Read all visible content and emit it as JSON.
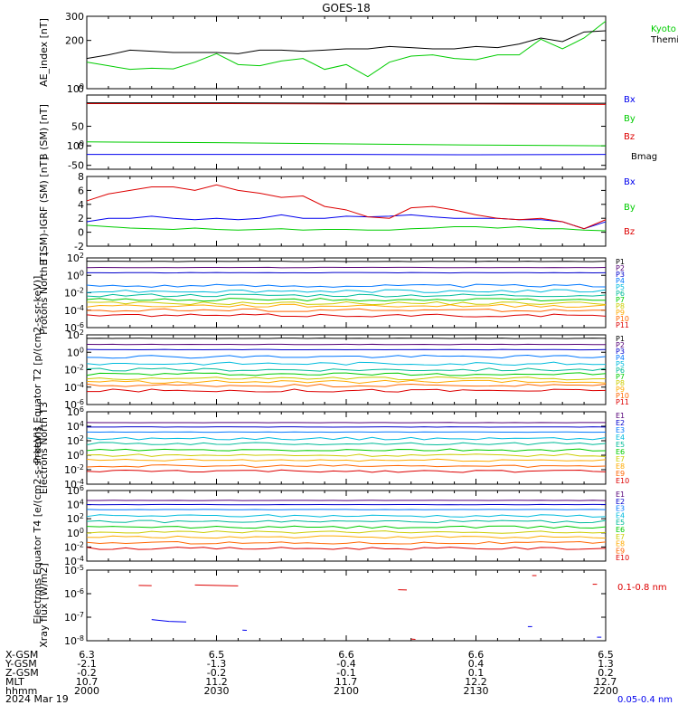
{
  "title": "GOES-18",
  "date_label": "2024 Mar 19",
  "ephemeris": {
    "row_labels": [
      "X-GSM",
      "Y-GSM",
      "Z-GSM",
      "MLT",
      "hhmm"
    ],
    "columns": [
      [
        "6.3",
        "-2.1",
        "-0.2",
        "10.7",
        "2000"
      ],
      [
        "6.5",
        "-1.3",
        "-0.2",
        "11.2",
        "2030"
      ],
      [
        "6.6",
        "-0.4",
        "-0.1",
        "11.7",
        "2100"
      ],
      [
        "6.6",
        "0.4",
        "0.1",
        "12.2",
        "2130"
      ],
      [
        "6.5",
        "1.3",
        "0.2",
        "12.7",
        "2200"
      ]
    ]
  },
  "colors": {
    "black": "#000000",
    "green": "#00cc00",
    "blue": "#0000ee",
    "red": "#dd0000",
    "ch": [
      "#000000",
      "#550077",
      "#0000cc",
      "#0077ff",
      "#00bbdd",
      "#00bb99",
      "#00cc00",
      "#cccc00",
      "#ffaa00",
      "#ff6600",
      "#dd0000",
      "#990000"
    ]
  },
  "chart_data": [
    {
      "type": "line",
      "ylabel": "AE_index [nT]",
      "x": [
        0,
        5,
        10,
        15,
        20,
        25,
        30,
        35,
        40,
        45,
        50,
        55,
        60,
        65,
        70,
        75,
        80,
        85,
        90,
        95,
        100,
        105,
        110,
        115,
        120
      ],
      "ylim": [
        0,
        300
      ],
      "yticks": [
        "0",
        "100",
        "200",
        "300"
      ],
      "series": [
        {
          "name": "Kyoto proxy AE",
          "color_key": "green",
          "values": [
            110,
            95,
            80,
            85,
            82,
            110,
            145,
            100,
            95,
            115,
            125,
            80,
            100,
            50,
            110,
            135,
            140,
            125,
            120,
            140,
            140,
            205,
            165,
            210,
            280
          ]
        },
        {
          "name": "Themis AE",
          "color_key": "black",
          "values": [
            125,
            140,
            160,
            155,
            150,
            150,
            150,
            145,
            160,
            160,
            155,
            160,
            165,
            165,
            175,
            170,
            165,
            165,
            175,
            170,
            185,
            210,
            195,
            235,
            240
          ]
        }
      ]
    },
    {
      "type": "line",
      "ylabel": "B (SM) [nT]",
      "x": [
        0,
        30,
        60,
        90,
        120
      ],
      "ylim": [
        -60,
        130
      ],
      "yticks": [
        "-50",
        "0",
        "50",
        "100"
      ],
      "series": [
        {
          "name": "Bx",
          "color_key": "blue",
          "values": [
            -22,
            -22,
            -22,
            -23,
            -22
          ]
        },
        {
          "name": "By",
          "color_key": "green",
          "values": [
            10,
            8,
            5,
            2,
            0
          ]
        },
        {
          "name": "Bz",
          "color_key": "red",
          "values": [
            108,
            108,
            107,
            107,
            106
          ]
        },
        {
          "name": "Bmag",
          "color_key": "black",
          "values": [
            110,
            110,
            109,
            109,
            109
          ]
        }
      ]
    },
    {
      "type": "line",
      "ylabel": "B (SM)-IGRF (SM) [nT]",
      "x": [
        0,
        5,
        10,
        15,
        20,
        25,
        30,
        35,
        40,
        45,
        50,
        55,
        60,
        65,
        70,
        75,
        80,
        85,
        90,
        95,
        100,
        105,
        110,
        115,
        120
      ],
      "ylim": [
        -2,
        8
      ],
      "yticks": [
        "-2",
        "0",
        "2",
        "4",
        "6",
        "8"
      ],
      "series": [
        {
          "name": "Bx",
          "color_key": "blue",
          "values": [
            1.5,
            2,
            2,
            2.3,
            2,
            1.8,
            2,
            1.8,
            2,
            2.5,
            2,
            2,
            2.3,
            2.2,
            2.3,
            2.5,
            2.2,
            2,
            2,
            2,
            1.8,
            1.8,
            1.5,
            0.5,
            1.5
          ]
        },
        {
          "name": "By",
          "color_key": "green",
          "values": [
            1,
            0.8,
            0.6,
            0.5,
            0.4,
            0.6,
            0.4,
            0.3,
            0.4,
            0.5,
            0.3,
            0.4,
            0.4,
            0.3,
            0.3,
            0.5,
            0.6,
            0.8,
            0.8,
            0.6,
            0.8,
            0.5,
            0.5,
            0.3,
            0.2
          ]
        },
        {
          "name": "Bz",
          "color_key": "red",
          "values": [
            4.5,
            5.5,
            6,
            6.5,
            6.5,
            6,
            6.8,
            6,
            5.6,
            5,
            5.2,
            3.7,
            3.2,
            2.2,
            2,
            3.5,
            3.7,
            3.2,
            2.5,
            2,
            1.8,
            2,
            1.5,
            0.5,
            1.8
          ]
        }
      ]
    },
    {
      "type": "line",
      "ylabel": "Protons North T1",
      "ylog": true,
      "ylim": [
        -6,
        2
      ],
      "yticks": [
        "10-6",
        "10-4",
        "10-2",
        "100",
        "102"
      ],
      "legend": [
        "P1",
        "P2",
        "P3",
        "P4",
        "P5",
        "P6",
        "P7",
        "P8",
        "P9",
        "P10",
        "P11"
      ],
      "levels_log10": [
        1.6,
        0.9,
        0.3,
        -1.2,
        -1.8,
        -2.3,
        -2.8,
        -3.2,
        -3.5,
        -4.0,
        -4.6
      ]
    },
    {
      "type": "line",
      "ylabel": "Protons Equator T2 [p/(cm2-s-sr-keV)]",
      "ylog": true,
      "ylim": [
        -6,
        2
      ],
      "yticks": [
        "10-6",
        "10-4",
        "10-2",
        "100",
        "102"
      ],
      "legend": [
        "P1",
        "P2",
        "P3",
        "P4",
        "P5",
        "P6",
        "P7",
        "P8",
        "P9",
        "P10",
        "P11"
      ],
      "levels_log10": [
        1.6,
        0.9,
        0.3,
        -0.5,
        -1.3,
        -2.0,
        -2.5,
        -3.0,
        -3.4,
        -3.8,
        -4.4
      ]
    },
    {
      "type": "line",
      "ylabel": "Electrons North T3",
      "ylog": true,
      "ylim": [
        -4,
        6
      ],
      "yticks": [
        "10-4",
        "10-2",
        "100",
        "102",
        "104",
        "106"
      ],
      "legend": [
        "E1",
        "E2",
        "E3",
        "E4",
        "E5",
        "E6",
        "E7",
        "E8",
        "E9",
        "E10"
      ],
      "levels_log10": [
        4.5,
        3.9,
        3.2,
        2.3,
        1.6,
        0.7,
        0.0,
        -0.7,
        -1.5,
        -2.2
      ]
    },
    {
      "type": "line",
      "ylabel": "Electrons Equator T4 [e/(cm2-s-sr-keV)]",
      "ylog": true,
      "ylim": [
        -4,
        6
      ],
      "yticks": [
        "10-4",
        "10-2",
        "100",
        "102",
        "104",
        "106"
      ],
      "legend": [
        "E1",
        "E2",
        "E3",
        "E4",
        "E5",
        "E6",
        "E7",
        "E8",
        "E9",
        "E10"
      ],
      "levels_log10": [
        4.6,
        4.0,
        3.3,
        2.4,
        1.6,
        0.8,
        0.1,
        -0.6,
        -1.4,
        -2.2
      ]
    },
    {
      "type": "line",
      "ylabel": "Xray flux [W/m2]",
      "ylog": true,
      "ylim": [
        -8,
        -5
      ],
      "yticks": [
        "10-8",
        "10-7",
        "10-6",
        "10-5"
      ],
      "series": [
        {
          "name": "0.1-0.8 nm",
          "color_key": "red",
          "segments": [
            [
              [
                12,
                -5.65
              ],
              [
                15,
                -5.66
              ]
            ],
            [
              [
                25,
                -5.63
              ],
              [
                35,
                -5.67
              ]
            ],
            [
              [
                72,
                -5.83
              ],
              [
                74,
                -5.84
              ]
            ],
            [
              [
                75,
                -7.93
              ],
              [
                76,
                -7.94
              ]
            ],
            [
              [
                103,
                -5.23
              ],
              [
                104,
                -5.23
              ]
            ],
            [
              [
                117,
                -5.6
              ],
              [
                118,
                -5.6
              ]
            ]
          ]
        },
        {
          "name": "0.05-0.4 nm",
          "color_key": "blue",
          "segments": [
            [
              [
                15,
                -7.1
              ],
              [
                19,
                -7.18
              ],
              [
                23,
                -7.2
              ]
            ],
            [
              [
                36,
                -7.55
              ],
              [
                37,
                -7.56
              ]
            ],
            [
              [
                102,
                -7.4
              ],
              [
                103,
                -7.4
              ]
            ],
            [
              [
                118,
                -7.85
              ],
              [
                119,
                -7.85
              ]
            ]
          ]
        }
      ]
    }
  ]
}
